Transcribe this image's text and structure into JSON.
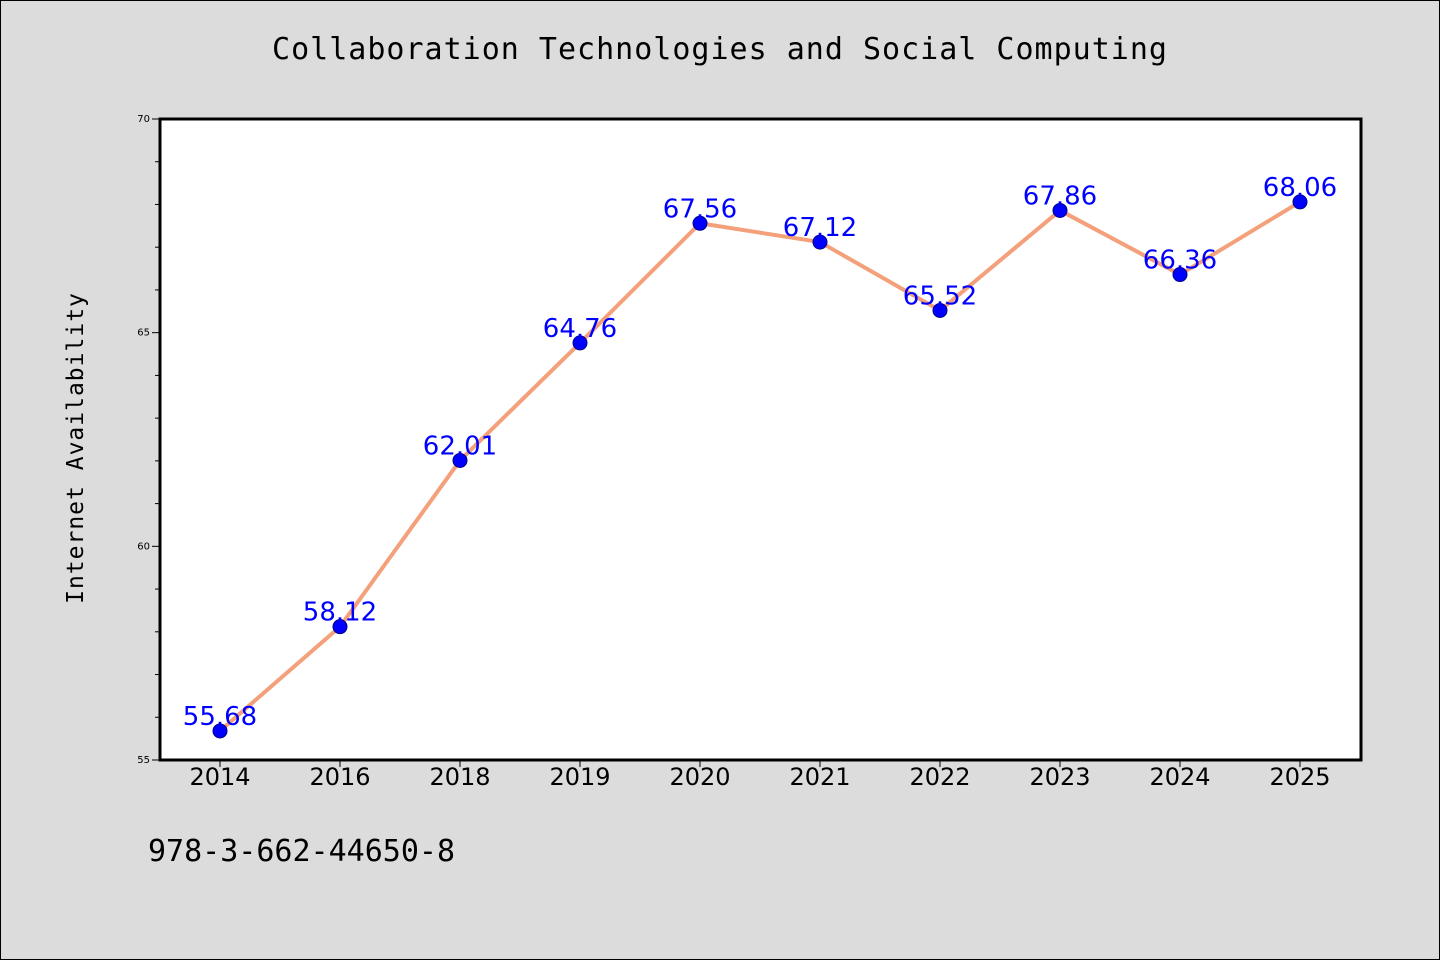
{
  "chart_data": {
    "type": "line",
    "title": "Collaboration Technologies and Social Computing",
    "xlabel": "",
    "ylabel": "Internet Availability",
    "categories": [
      "2014",
      "2016",
      "2018",
      "2019",
      "2020",
      "2021",
      "2022",
      "2023",
      "2024",
      "2025"
    ],
    "series": [
      {
        "values": [
          55.68,
          58.12,
          62.01,
          64.76,
          67.56,
          67.12,
          65.52,
          67.86,
          66.36,
          68.06
        ]
      }
    ],
    "data_labels": [
      "55.68",
      "58.12",
      "62.01",
      "64.76",
      "67.56",
      "67.12",
      "65.52",
      "67.86",
      "66.36",
      "68.06"
    ],
    "ylim": [
      55,
      70
    ],
    "yticks": [
      55,
      60,
      65,
      70
    ],
    "grid": false,
    "line_color": "#f4a07a",
    "marker_color": "#0000ff",
    "label_color": "#0000ff",
    "background_color": "#dcdcdc",
    "plot_background": "#ffffff"
  },
  "footnote": "978-3-662-44650-8"
}
